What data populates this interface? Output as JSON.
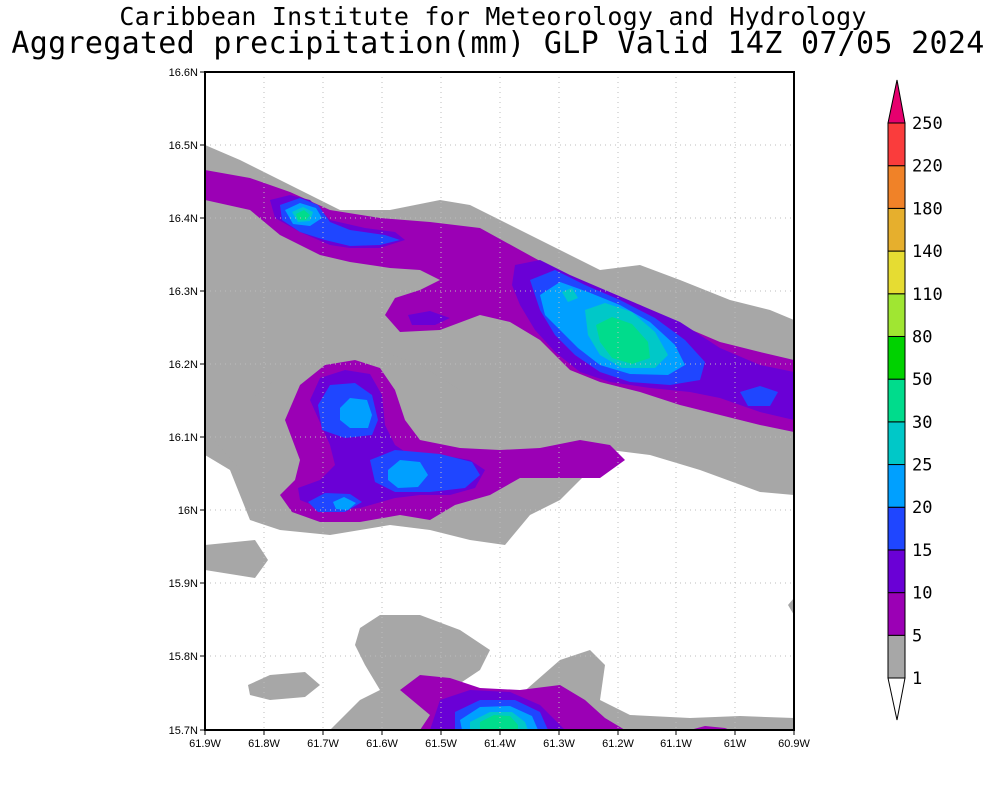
{
  "title": {
    "line1": "Caribbean Institute for Meteorology and Hydrology",
    "line2": "Aggregated precipitation(mm) GLP Valid 14Z 07/05 2024"
  },
  "map": {
    "lat_labels": [
      "16.6N",
      "16.5N",
      "16.4N",
      "16.3N",
      "16.2N",
      "16.1N",
      "16N",
      "15.9N",
      "15.8N",
      "15.7N"
    ],
    "lon_labels": [
      "61.9W",
      "61.8W",
      "61.7W",
      "61.6W",
      "61.5W",
      "61.4W",
      "61.3W",
      "61.2W",
      "61.1W",
      "61W",
      "60.9W"
    ],
    "lat_range": [
      15.7,
      16.6
    ],
    "lon_range": [
      -61.9,
      -60.9
    ],
    "grid": "dotted"
  },
  "colorbar": {
    "levels": [
      "1",
      "5",
      "10",
      "15",
      "20",
      "25",
      "30",
      "50",
      "80",
      "110",
      "140",
      "180",
      "220",
      "250"
    ],
    "colors": {
      "1": "#a7a7a7",
      "5": "#9b00b5",
      "10": "#6a00d6",
      "15": "#1f46ff",
      "20": "#00a0ff",
      "25": "#00c8c8",
      "30": "#00dc8c",
      "50": "#00d200",
      "80": "#a0e632",
      "110": "#e6dc32",
      "140": "#e6af2d",
      "180": "#f08228",
      "220": "#fa3c3c",
      "250": "#e6006e"
    }
  }
}
